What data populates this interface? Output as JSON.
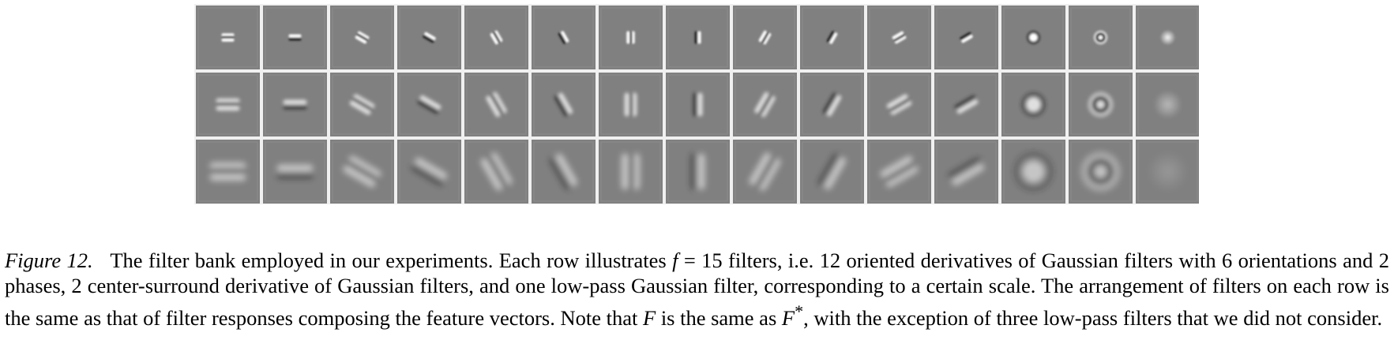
{
  "figure": {
    "label": "Figure 12",
    "label_sep": ".",
    "rows": 3,
    "columns": 15,
    "filters": [
      {
        "kind": "oriented",
        "orientation_deg": 0,
        "phase": "even"
      },
      {
        "kind": "oriented",
        "orientation_deg": 0,
        "phase": "odd"
      },
      {
        "kind": "oriented",
        "orientation_deg": 30,
        "phase": "even"
      },
      {
        "kind": "oriented",
        "orientation_deg": 30,
        "phase": "odd"
      },
      {
        "kind": "oriented",
        "orientation_deg": 60,
        "phase": "even"
      },
      {
        "kind": "oriented",
        "orientation_deg": 60,
        "phase": "odd"
      },
      {
        "kind": "oriented",
        "orientation_deg": 90,
        "phase": "even"
      },
      {
        "kind": "oriented",
        "orientation_deg": 90,
        "phase": "odd"
      },
      {
        "kind": "oriented",
        "orientation_deg": 120,
        "phase": "even"
      },
      {
        "kind": "oriented",
        "orientation_deg": 120,
        "phase": "odd"
      },
      {
        "kind": "oriented",
        "orientation_deg": 150,
        "phase": "even"
      },
      {
        "kind": "oriented",
        "orientation_deg": 150,
        "phase": "odd"
      },
      {
        "kind": "center-surround",
        "variant": "dog"
      },
      {
        "kind": "center-surround",
        "variant": "log"
      },
      {
        "kind": "low-pass"
      }
    ],
    "colors": {
      "background": "#808080",
      "separator": "#f0f0f0",
      "light": "#ffffff",
      "dark": "#202020"
    }
  },
  "caption": {
    "part1": "The filter bank employed in our experiments. Each row illustrates ",
    "var_f": "f",
    "eq": " = 15 filters, i.e. 12 oriented derivatives of Gaussian filters with 6 orientations and 2 phases, 2 center-surround derivative of Gaussian filters, and one low-pass Gaussian filter, corresponding to a certain scale. The arrangement of filters on each row is the same as that of filter responses composing the feature vectors. Note that ",
    "var_F": "F",
    "part2": " is the same as ",
    "var_Fstar": "F",
    "star": "*",
    "part3": ", with the exception of three low-pass filters that we did not consider."
  }
}
